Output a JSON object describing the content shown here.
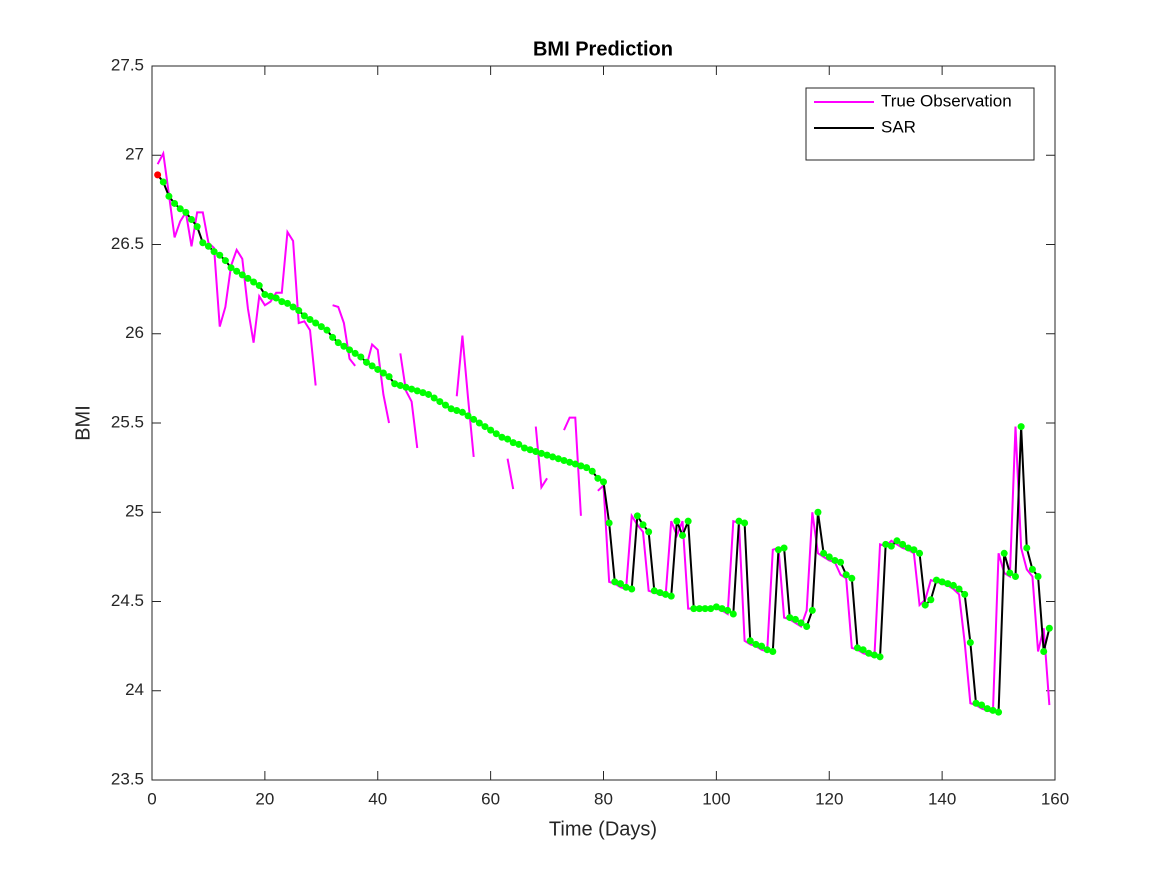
{
  "chart_data": {
    "type": "line",
    "title": "BMI Prediction",
    "xlabel": "Time (Days)",
    "ylabel": "BMI",
    "x": [
      1,
      2,
      3,
      4,
      5,
      6,
      7,
      8,
      9,
      10,
      11,
      12,
      13,
      14,
      15,
      16,
      17,
      18,
      19,
      20,
      21,
      22,
      23,
      24,
      25,
      26,
      27,
      28,
      29,
      30,
      31,
      32,
      33,
      34,
      35,
      36,
      37,
      38,
      39,
      40,
      41,
      42,
      43,
      44,
      45,
      46,
      47,
      48,
      49,
      50,
      51,
      52,
      53,
      54,
      55,
      56,
      57,
      58,
      59,
      60,
      61,
      62,
      63,
      64,
      65,
      66,
      67,
      68,
      69,
      70,
      71,
      72,
      73,
      74,
      75,
      76,
      77,
      78,
      79,
      80,
      81,
      82,
      83,
      84,
      85,
      86,
      87,
      88,
      89,
      90,
      91,
      92,
      93,
      94,
      95,
      96,
      97,
      98,
      99,
      100,
      101,
      102,
      103,
      104,
      105,
      106,
      107,
      108,
      109,
      110,
      111,
      112,
      113,
      114,
      115,
      116,
      117,
      118,
      119,
      120,
      121,
      122,
      123,
      124,
      125,
      126,
      127,
      128,
      129,
      130,
      131,
      132,
      133,
      134,
      135,
      136,
      137,
      138,
      139,
      140,
      141,
      142,
      143,
      144,
      145,
      146,
      147,
      148,
      149,
      150,
      151,
      152,
      153,
      154,
      155,
      156,
      157,
      158,
      159
    ],
    "series": [
      {
        "name": "True Observation",
        "color": "#ff00ff",
        "values": [
          26.95,
          27.01,
          26.78,
          26.54,
          26.63,
          26.68,
          26.49,
          26.68,
          26.68,
          26.51,
          26.48,
          26.04,
          26.15,
          26.38,
          26.47,
          26.42,
          26.14,
          25.95,
          26.21,
          26.16,
          26.18,
          26.23,
          26.23,
          26.57,
          26.52,
          26.06,
          26.07,
          26.02,
          25.71,
          null,
          null,
          26.16,
          26.15,
          26.06,
          25.86,
          25.82,
          null,
          25.82,
          25.94,
          25.91,
          25.66,
          25.5,
          null,
          25.89,
          25.68,
          25.62,
          25.36,
          null,
          null,
          null,
          null,
          null,
          null,
          25.65,
          25.99,
          25.64,
          25.31,
          null,
          null,
          null,
          null,
          null,
          25.3,
          25.13,
          null,
          null,
          null,
          25.48,
          25.14,
          25.19,
          null,
          null,
          25.46,
          25.53,
          25.53,
          24.98,
          null,
          null,
          25.12,
          25.15,
          24.61,
          24.6,
          24.58,
          24.57,
          24.98,
          24.93,
          24.89,
          24.56,
          24.55,
          24.54,
          24.53,
          24.95,
          24.87,
          24.95,
          24.46,
          24.46,
          24.46,
          24.46,
          24.47,
          24.46,
          24.45,
          24.43,
          24.95,
          24.94,
          24.28,
          24.26,
          24.25,
          24.23,
          24.22,
          24.79,
          24.8,
          24.41,
          24.4,
          24.38,
          24.36,
          24.45,
          25.0,
          24.77,
          24.75,
          24.73,
          24.72,
          24.65,
          24.63,
          24.24,
          24.23,
          24.21,
          24.2,
          24.19,
          24.82,
          24.81,
          24.84,
          24.82,
          24.8,
          24.79,
          24.77,
          24.48,
          24.51,
          24.62,
          24.61,
          24.6,
          24.59,
          24.57,
          24.54,
          24.27,
          23.93,
          23.92,
          23.9,
          23.89,
          23.88,
          24.77,
          24.66,
          24.64,
          25.48,
          24.8,
          24.68,
          24.64,
          24.22,
          24.35,
          23.92
        ]
      },
      {
        "name": "SAR",
        "color": "#000000",
        "marker_color": "#00ff00",
        "start_marker_color": "#ff0000",
        "values": [
          26.89,
          26.85,
          26.77,
          26.73,
          26.7,
          26.68,
          26.64,
          26.6,
          26.51,
          26.49,
          26.46,
          26.44,
          26.41,
          26.37,
          26.35,
          26.33,
          26.31,
          26.29,
          26.27,
          26.22,
          26.21,
          26.2,
          26.18,
          26.17,
          26.15,
          26.13,
          26.1,
          26.08,
          26.06,
          26.04,
          26.02,
          25.98,
          25.95,
          25.93,
          25.91,
          25.89,
          25.87,
          25.84,
          25.82,
          25.8,
          25.78,
          25.76,
          25.72,
          25.71,
          25.7,
          25.69,
          25.68,
          25.67,
          25.66,
          25.64,
          25.62,
          25.6,
          25.58,
          25.57,
          25.56,
          25.54,
          25.52,
          25.5,
          25.48,
          25.46,
          25.44,
          25.42,
          25.41,
          25.39,
          25.38,
          25.36,
          25.35,
          25.34,
          25.33,
          25.32,
          25.31,
          25.3,
          25.29,
          25.28,
          25.27,
          25.26,
          25.25,
          25.23,
          25.19,
          25.17,
          24.94,
          24.61,
          24.6,
          24.58,
          24.57,
          24.98,
          24.93,
          24.89,
          24.56,
          24.55,
          24.54,
          24.53,
          24.95,
          24.87,
          24.95,
          24.46,
          24.46,
          24.46,
          24.46,
          24.47,
          24.46,
          24.45,
          24.43,
          24.95,
          24.94,
          24.28,
          24.26,
          24.25,
          24.23,
          24.22,
          24.79,
          24.8,
          24.41,
          24.4,
          24.38,
          24.36,
          24.45,
          25.0,
          24.77,
          24.75,
          24.73,
          24.72,
          24.65,
          24.63,
          24.24,
          24.23,
          24.21,
          24.2,
          24.19,
          24.82,
          24.81,
          24.84,
          24.82,
          24.8,
          24.79,
          24.77,
          24.48,
          24.51,
          24.62,
          24.61,
          24.6,
          24.59,
          24.57,
          24.54,
          24.27,
          23.93,
          23.92,
          23.9,
          23.89,
          23.88,
          24.77,
          24.66,
          24.64,
          25.48,
          24.8,
          24.68,
          24.64,
          24.22,
          24.35
        ]
      }
    ],
    "xlim": [
      0,
      160
    ],
    "xticks": [
      0,
      20,
      40,
      60,
      80,
      100,
      120,
      140,
      160
    ],
    "ylim": [
      23.5,
      27.5
    ],
    "yticks": [
      23.5,
      24,
      24.5,
      25,
      25.5,
      26,
      26.5,
      27,
      27.5
    ],
    "legend": "upper right",
    "grid": false
  }
}
